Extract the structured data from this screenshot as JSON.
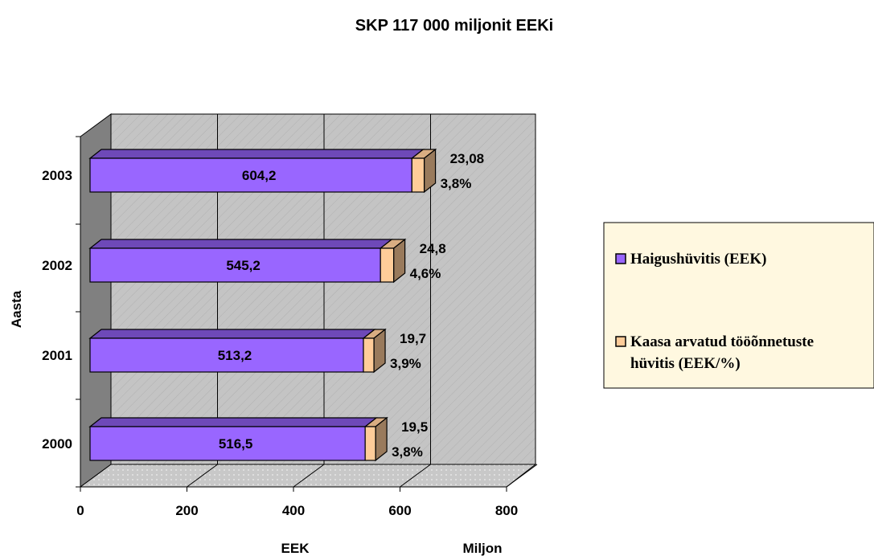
{
  "chart_data": {
    "type": "bar",
    "orientation": "horizontal",
    "stacked": true,
    "three_d": true,
    "title": "SKP  117 000 miljonit EEKi",
    "categories": [
      "2000",
      "2001",
      "2002",
      "2003"
    ],
    "ylabel": "Aasta",
    "xlabel": "EEK",
    "xlabel2": "Miljon",
    "xlim": [
      0,
      800
    ],
    "xticks": [
      "0",
      "200",
      "400",
      "600",
      "800"
    ],
    "grid": true,
    "legend_position": "right",
    "series": [
      {
        "name": "Haigushüvitis (EEK)",
        "color": "#9966ff",
        "values": [
          516.5,
          513.2,
          545.2,
          604.2
        ],
        "labels": [
          "516,5",
          "513,2",
          "545,2",
          "604,2"
        ]
      },
      {
        "name": "Kaasa arvatud tööõnnetuste hüvitis (EEK/%)",
        "color": "#ffcc99",
        "values": [
          19.5,
          19.7,
          24.8,
          23.08
        ],
        "labels": [
          "19,5",
          "19,7",
          "24,8",
          "23,08"
        ],
        "percent_labels": [
          "3,8%",
          "3,9%",
          "4,6%",
          "3,8%"
        ]
      }
    ]
  },
  "legend": {
    "items": [
      {
        "line1": "Haigushüvitis (EEK)",
        "line2": ""
      },
      {
        "line1": "Kaasa arvatud tööõnnetuste",
        "line2": "hüvitis (EEK/%)"
      }
    ]
  },
  "colors": {
    "wall": "#c0c0c0",
    "side_wall": "#808080",
    "floor": "#c0c0c0",
    "legend_bg": "#fff8e0"
  }
}
